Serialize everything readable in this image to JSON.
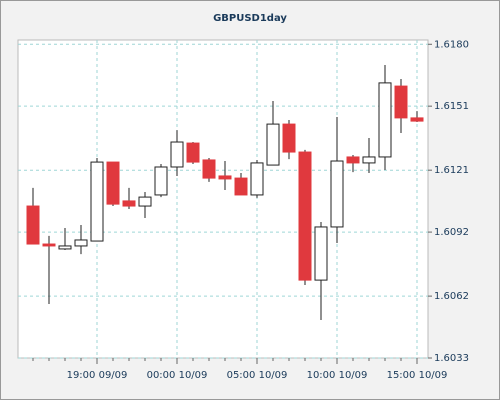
{
  "chart_data": {
    "type": "candlestick",
    "title": "GBPUSD1day",
    "categories": [
      null,
      null,
      null,
      null,
      "19:00 09/09",
      null,
      null,
      null,
      null,
      "00:00 10/09",
      null,
      null,
      null,
      null,
      "05:00 10/09",
      null,
      null,
      null,
      null,
      "10:00 10/09",
      null,
      null,
      null,
      null,
      "15:00 10/09"
    ],
    "open": [
      1.61042,
      1.60864,
      1.60841,
      1.60855,
      1.60878,
      1.61248,
      1.61066,
      1.61042,
      1.61094,
      1.61225,
      1.61337,
      1.61258,
      1.61183,
      1.61173,
      1.61094,
      1.61234,
      1.61426,
      1.61295,
      1.60695,
      1.60944,
      1.61272,
      1.61244,
      1.61272,
      1.61604,
      1.61455
    ],
    "high": [
      1.61127,
      1.60902,
      1.60939,
      1.60953,
      1.61267,
      1.61248,
      1.61127,
      1.61108,
      1.61239,
      1.61398,
      1.61342,
      1.61267,
      1.61253,
      1.61197,
      1.61258,
      1.61534,
      1.61445,
      1.61305,
      1.60967,
      1.61459,
      1.61281,
      1.61361,
      1.61703,
      1.61637,
      1.61487
    ],
    "low": [
      1.60864,
      1.60583,
      1.60836,
      1.60817,
      1.60878,
      1.61042,
      1.61028,
      1.60986,
      1.61084,
      1.61183,
      1.61239,
      1.61155,
      1.61117,
      1.61094,
      1.6108,
      1.61234,
      1.61262,
      1.60672,
      1.60508,
      1.60869,
      1.61201,
      1.61197,
      1.61211,
      1.61384,
      1.61436
    ],
    "close": [
      1.60864,
      1.60855,
      1.60855,
      1.60883,
      1.61248,
      1.61051,
      1.61042,
      1.61084,
      1.61225,
      1.61342,
      1.61248,
      1.61173,
      1.61169,
      1.61094,
      1.61244,
      1.61426,
      1.61295,
      1.60695,
      1.60944,
      1.61253,
      1.61244,
      1.61272,
      1.61619,
      1.61455,
      1.6144
    ],
    "up_color": "#ffffff",
    "down_color": "#e0393e",
    "ylim": [
      1.6033,
      1.6182
    ],
    "yticks": [
      {
        "value": 1.6033,
        "label": "1.6033"
      },
      {
        "value": 1.6062,
        "label": "1.6062"
      },
      {
        "value": 1.6092,
        "label": "1.6092"
      },
      {
        "value": 1.6121,
        "label": "1.6121"
      },
      {
        "value": 1.6151,
        "label": "1.6151"
      },
      {
        "value": 1.618,
        "label": "1.6180"
      }
    ],
    "grid": true
  }
}
